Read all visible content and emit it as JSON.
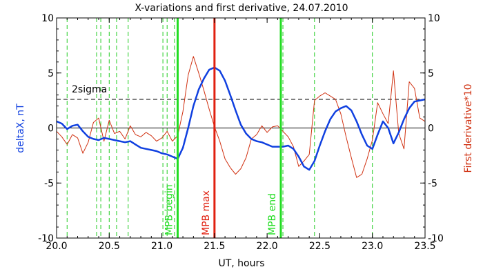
{
  "chart_data": {
    "type": "line",
    "title": "X-variations and first derivative, 24.07.2010",
    "xlabel": "UT, hours",
    "ylabel_left": "deltaX, nT",
    "ylabel_right": "First derivative*10",
    "xlim": [
      20.0,
      23.5
    ],
    "ylim": [
      -10,
      10
    ],
    "x_ticks": [
      "20.0",
      "20.5",
      "21.0",
      "21.5",
      "22.0",
      "22.5",
      "23.0",
      "23.5"
    ],
    "y_ticks_left": [
      "10",
      "5",
      "0",
      "-5",
      "-10"
    ],
    "y_ticks_right": [
      "10",
      "5",
      "0",
      "-5",
      "-10"
    ],
    "threshold": {
      "label": "2sigma",
      "value": 2.6
    },
    "zero_line": 0,
    "colors": {
      "deltaX": "#1040e0",
      "derivative": "#d03010",
      "mpb_boundary": "#22dd22",
      "mpb_max": "#e02010",
      "candidate": "#22cc22"
    },
    "series": [
      {
        "key": "deltaX",
        "axis": "left",
        "x": [
          20.0,
          20.05,
          20.1,
          20.15,
          20.2,
          20.25,
          20.3,
          20.35,
          20.4,
          20.45,
          20.5,
          20.55,
          20.6,
          20.65,
          20.7,
          20.75,
          20.8,
          20.85,
          20.9,
          20.95,
          21.0,
          21.05,
          21.1,
          21.15,
          21.2,
          21.25,
          21.3,
          21.35,
          21.4,
          21.45,
          21.5,
          21.55,
          21.6,
          21.65,
          21.7,
          21.75,
          21.8,
          21.85,
          21.9,
          21.95,
          22.0,
          22.05,
          22.1,
          22.15,
          22.2,
          22.25,
          22.3,
          22.35,
          22.4,
          22.45,
          22.5,
          22.55,
          22.6,
          22.65,
          22.7,
          22.75,
          22.8,
          22.85,
          22.9,
          22.95,
          23.0,
          23.05,
          23.1,
          23.15,
          23.2,
          23.25,
          23.3,
          23.35,
          23.4,
          23.45,
          23.5
        ],
        "y": [
          0.6,
          0.4,
          -0.1,
          0.2,
          0.3,
          -0.3,
          -0.8,
          -1.0,
          -1.1,
          -0.9,
          -1.0,
          -1.1,
          -1.2,
          -1.3,
          -1.2,
          -1.5,
          -1.8,
          -1.9,
          -2.0,
          -2.1,
          -2.3,
          -2.4,
          -2.6,
          -2.8,
          -1.8,
          0.0,
          2.0,
          3.5,
          4.5,
          5.3,
          5.5,
          5.2,
          4.3,
          3.0,
          1.6,
          0.3,
          -0.5,
          -1.0,
          -1.2,
          -1.3,
          -1.5,
          -1.7,
          -1.7,
          -1.7,
          -1.6,
          -1.9,
          -2.6,
          -3.5,
          -3.8,
          -3.0,
          -1.6,
          -0.3,
          0.8,
          1.5,
          1.8,
          2.0,
          1.6,
          0.6,
          -0.6,
          -1.6,
          -1.9,
          -0.6,
          0.6,
          0.0,
          -1.4,
          -0.4,
          0.8,
          1.8,
          2.4,
          2.5,
          2.6
        ]
      },
      {
        "key": "derivative",
        "axis": "right",
        "x": [
          20.0,
          20.05,
          20.1,
          20.15,
          20.2,
          20.25,
          20.3,
          20.35,
          20.4,
          20.45,
          20.5,
          20.55,
          20.6,
          20.65,
          20.7,
          20.75,
          20.8,
          20.85,
          20.9,
          20.95,
          21.0,
          21.05,
          21.1,
          21.15,
          21.2,
          21.25,
          21.3,
          21.35,
          21.4,
          21.45,
          21.5,
          21.55,
          21.6,
          21.65,
          21.7,
          21.75,
          21.8,
          21.85,
          21.9,
          21.95,
          22.0,
          22.05,
          22.1,
          22.15,
          22.2,
          22.25,
          22.3,
          22.35,
          22.4,
          22.45,
          22.5,
          22.55,
          22.6,
          22.65,
          22.7,
          22.75,
          22.8,
          22.85,
          22.9,
          22.95,
          23.0,
          23.05,
          23.1,
          23.15,
          23.2,
          23.25,
          23.3,
          23.35,
          23.4,
          23.45,
          23.5
        ],
        "y": [
          -0.3,
          -0.8,
          -1.5,
          -0.6,
          -0.9,
          -2.3,
          -1.3,
          0.5,
          0.9,
          -1.2,
          0.7,
          -0.5,
          -0.3,
          -1.0,
          0.2,
          -0.6,
          -0.8,
          -0.4,
          -0.7,
          -1.2,
          -0.9,
          -0.3,
          -1.2,
          -0.7,
          1.5,
          4.8,
          6.5,
          5.0,
          3.4,
          1.7,
          0.1,
          -1.2,
          -2.8,
          -3.6,
          -4.2,
          -3.7,
          -2.7,
          -1.0,
          -0.6,
          0.2,
          -0.4,
          0.1,
          0.2,
          -0.3,
          -0.8,
          -1.7,
          -3.5,
          -3.0,
          -2.4,
          2.5,
          2.9,
          3.2,
          2.9,
          2.6,
          1.3,
          -0.8,
          -2.7,
          -4.5,
          -4.2,
          -2.8,
          -1.1,
          2.3,
          1.3,
          0.4,
          5.2,
          -0.5,
          -1.9,
          4.2,
          3.6,
          0.9,
          0.6
        ]
      }
    ],
    "vertical_markers": [
      {
        "x": 21.15,
        "label": "MPB begin",
        "style": "solid",
        "kind": "boundary"
      },
      {
        "x": 21.5,
        "label": "MPB max",
        "style": "solid",
        "kind": "max"
      },
      {
        "x": 22.13,
        "label": "MPB end",
        "style": "solid",
        "kind": "boundary"
      }
    ],
    "candidate_lines_x": [
      20.1,
      20.38,
      20.42,
      20.5,
      20.57,
      20.68,
      21.01,
      21.05,
      21.12,
      22.15,
      22.45,
      23.0
    ]
  }
}
